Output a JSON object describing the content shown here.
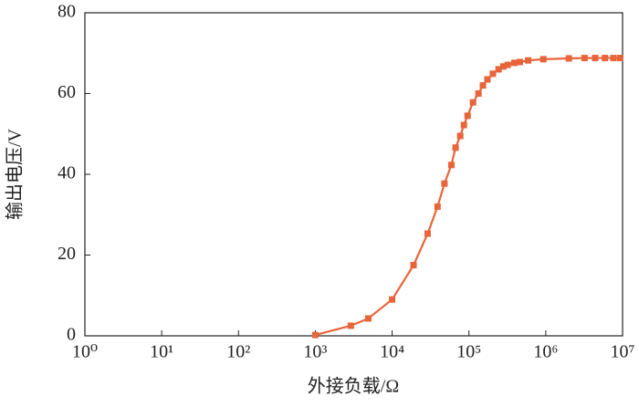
{
  "chart_data": {
    "type": "line",
    "x_label": "外接负载/Ω",
    "y_label": "输出电压/V",
    "x_scale": "log",
    "x": [
      1000,
      2900,
      4900,
      10000,
      19000,
      29000,
      39000,
      48000,
      59000,
      67000,
      77000,
      86000,
      96000,
      113000,
      133000,
      152000,
      174000,
      205000,
      243000,
      280000,
      320000,
      390000,
      460000,
      590000,
      930000,
      2000000,
      3200000,
      4400000,
      5900000,
      7600000,
      9300000
    ],
    "series": [
      {
        "color": "#e8643a",
        "values": [
          0.2,
          2.5,
          4.3,
          9,
          17.5,
          25.3,
          32,
          37.7,
          42.3,
          46.6,
          49.5,
          52.2,
          54.5,
          57.8,
          60,
          62,
          63.5,
          64.9,
          66,
          66.7,
          67.1,
          67.6,
          67.8,
          68.2,
          68.5,
          68.7,
          68.8,
          68.8,
          68.8,
          68.8,
          68.8
        ]
      }
    ],
    "xlim": [
      1,
      10000000
    ],
    "xticks": [
      {
        "value": 1,
        "label": "10⁰"
      },
      {
        "value": 10,
        "label": "10¹"
      },
      {
        "value": 100,
        "label": "10²"
      },
      {
        "value": 1000,
        "label": "10³"
      },
      {
        "value": 10000,
        "label": "10⁴"
      },
      {
        "value": 100000,
        "label": "10⁵"
      },
      {
        "value": 1000000,
        "label": "10⁶"
      },
      {
        "value": 10000000,
        "label": "10⁷"
      }
    ],
    "ylim": [
      0,
      80
    ],
    "yticks": [
      0,
      20,
      40,
      60,
      80
    ],
    "grid": false
  }
}
